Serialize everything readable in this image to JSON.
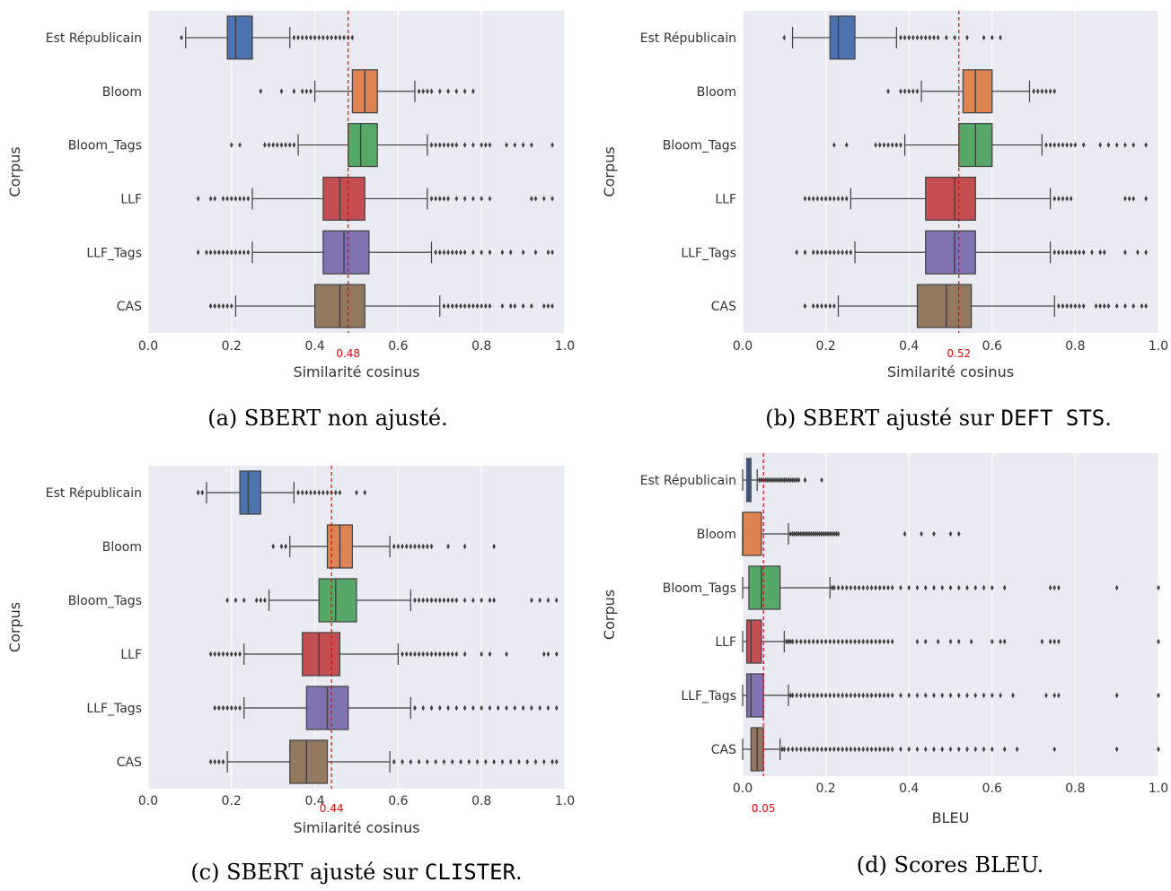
{
  "chart_data": [
    {
      "type": "boxplot",
      "orientation": "horizontal",
      "caption": {
        "prefix": "(a) SBERT non ajusté.",
        "mono": "",
        "suffix": ""
      },
      "xlabel": "Similarité cosinus",
      "ylabel": "Corpus",
      "xlim": [
        0,
        1
      ],
      "xticks": [
        "0.0",
        "0.2",
        "0.4",
        "0.6",
        "0.8",
        "1.0"
      ],
      "reference_line": {
        "value": 0.48,
        "label": "0.48"
      },
      "grid": true,
      "categories": [
        "Est Républicain",
        "Bloom",
        "Bloom_Tags",
        "LLF",
        "LLF_Tags",
        "CAS"
      ],
      "boxes": [
        {
          "corpus": "Est Républicain",
          "whisker_low": 0.09,
          "q1": 0.19,
          "median": 0.21,
          "q3": 0.25,
          "whisker_high": 0.34,
          "outliers": [
            0.08,
            0.35,
            0.36,
            0.37,
            0.38,
            0.39,
            0.4,
            0.41,
            0.42,
            0.43,
            0.44,
            0.45,
            0.46,
            0.47,
            0.48,
            0.49
          ]
        },
        {
          "corpus": "Bloom",
          "whisker_low": 0.4,
          "q1": 0.49,
          "median": 0.52,
          "q3": 0.55,
          "whisker_high": 0.64,
          "outliers": [
            0.27,
            0.32,
            0.35,
            0.37,
            0.38,
            0.39,
            0.65,
            0.66,
            0.67,
            0.68,
            0.7,
            0.72,
            0.74,
            0.76,
            0.78
          ]
        },
        {
          "corpus": "Bloom_Tags",
          "whisker_low": 0.36,
          "q1": 0.48,
          "median": 0.51,
          "q3": 0.55,
          "whisker_high": 0.67,
          "outliers": [
            0.2,
            0.22,
            0.28,
            0.29,
            0.3,
            0.31,
            0.32,
            0.33,
            0.34,
            0.35,
            0.68,
            0.69,
            0.7,
            0.71,
            0.72,
            0.73,
            0.74,
            0.76,
            0.78,
            0.8,
            0.81,
            0.82,
            0.86,
            0.88,
            0.9,
            0.92,
            0.97
          ]
        },
        {
          "corpus": "LLF",
          "whisker_low": 0.25,
          "q1": 0.42,
          "median": 0.46,
          "q3": 0.52,
          "whisker_high": 0.67,
          "outliers": [
            0.12,
            0.15,
            0.16,
            0.18,
            0.19,
            0.2,
            0.21,
            0.22,
            0.23,
            0.24,
            0.68,
            0.69,
            0.7,
            0.71,
            0.72,
            0.74,
            0.76,
            0.78,
            0.8,
            0.82,
            0.92,
            0.93,
            0.95,
            0.97
          ]
        },
        {
          "corpus": "LLF_Tags",
          "whisker_low": 0.25,
          "q1": 0.42,
          "median": 0.47,
          "q3": 0.53,
          "whisker_high": 0.68,
          "outliers": [
            0.12,
            0.14,
            0.15,
            0.16,
            0.17,
            0.18,
            0.19,
            0.2,
            0.21,
            0.22,
            0.23,
            0.24,
            0.69,
            0.7,
            0.71,
            0.72,
            0.73,
            0.74,
            0.75,
            0.76,
            0.78,
            0.8,
            0.82,
            0.85,
            0.87,
            0.9,
            0.93,
            0.96,
            0.97
          ]
        },
        {
          "corpus": "CAS",
          "whisker_low": 0.21,
          "q1": 0.4,
          "median": 0.46,
          "q3": 0.52,
          "whisker_high": 0.7,
          "outliers": [
            0.15,
            0.16,
            0.17,
            0.18,
            0.19,
            0.2,
            0.71,
            0.72,
            0.73,
            0.74,
            0.75,
            0.76,
            0.77,
            0.78,
            0.79,
            0.8,
            0.81,
            0.82,
            0.85,
            0.87,
            0.88,
            0.9,
            0.92,
            0.95,
            0.96,
            0.97
          ]
        }
      ]
    },
    {
      "type": "boxplot",
      "orientation": "horizontal",
      "caption": {
        "prefix": "(b) SBERT ajusté sur ",
        "mono": "DEFT STS",
        "suffix": "."
      },
      "xlabel": "Similarité cosinus",
      "ylabel": "Corpus",
      "xlim": [
        0,
        1
      ],
      "xticks": [
        "0.0",
        "0.2",
        "0.4",
        "0.6",
        "0.8",
        "1.0"
      ],
      "reference_line": {
        "value": 0.52,
        "label": "0.52"
      },
      "grid": true,
      "categories": [
        "Est Républicain",
        "Bloom",
        "Bloom_Tags",
        "LLF",
        "LLF_Tags",
        "CAS"
      ],
      "boxes": [
        {
          "corpus": "Est Républicain",
          "whisker_low": 0.12,
          "q1": 0.21,
          "median": 0.23,
          "q3": 0.27,
          "whisker_high": 0.37,
          "outliers": [
            0.1,
            0.38,
            0.39,
            0.4,
            0.41,
            0.42,
            0.43,
            0.44,
            0.45,
            0.46,
            0.47,
            0.49,
            0.51,
            0.54,
            0.58,
            0.6,
            0.62
          ]
        },
        {
          "corpus": "Bloom",
          "whisker_low": 0.43,
          "q1": 0.53,
          "median": 0.56,
          "q3": 0.6,
          "whisker_high": 0.69,
          "outliers": [
            0.35,
            0.38,
            0.39,
            0.4,
            0.41,
            0.42,
            0.7,
            0.71,
            0.72,
            0.73,
            0.74,
            0.75
          ]
        },
        {
          "corpus": "Bloom_Tags",
          "whisker_low": 0.39,
          "q1": 0.52,
          "median": 0.56,
          "q3": 0.6,
          "whisker_high": 0.72,
          "outliers": [
            0.22,
            0.25,
            0.32,
            0.33,
            0.34,
            0.35,
            0.36,
            0.37,
            0.38,
            0.73,
            0.74,
            0.75,
            0.76,
            0.77,
            0.78,
            0.79,
            0.8,
            0.82,
            0.86,
            0.88,
            0.9,
            0.92,
            0.94,
            0.97
          ]
        },
        {
          "corpus": "LLF",
          "whisker_low": 0.26,
          "q1": 0.44,
          "median": 0.51,
          "q3": 0.56,
          "whisker_high": 0.74,
          "outliers": [
            0.15,
            0.16,
            0.17,
            0.18,
            0.19,
            0.2,
            0.21,
            0.22,
            0.23,
            0.24,
            0.25,
            0.75,
            0.76,
            0.77,
            0.78,
            0.79,
            0.92,
            0.93,
            0.94,
            0.97
          ]
        },
        {
          "corpus": "LLF_Tags",
          "whisker_low": 0.27,
          "q1": 0.44,
          "median": 0.51,
          "q3": 0.56,
          "whisker_high": 0.74,
          "outliers": [
            0.13,
            0.15,
            0.17,
            0.18,
            0.19,
            0.2,
            0.21,
            0.22,
            0.23,
            0.24,
            0.25,
            0.26,
            0.75,
            0.76,
            0.77,
            0.78,
            0.79,
            0.8,
            0.81,
            0.82,
            0.84,
            0.86,
            0.87,
            0.92,
            0.95,
            0.97
          ]
        },
        {
          "corpus": "CAS",
          "whisker_low": 0.23,
          "q1": 0.42,
          "median": 0.49,
          "q3": 0.55,
          "whisker_high": 0.75,
          "outliers": [
            0.15,
            0.17,
            0.18,
            0.19,
            0.2,
            0.21,
            0.22,
            0.76,
            0.77,
            0.78,
            0.79,
            0.8,
            0.81,
            0.82,
            0.85,
            0.86,
            0.87,
            0.88,
            0.9,
            0.92,
            0.94,
            0.96,
            0.97
          ]
        }
      ]
    },
    {
      "type": "boxplot",
      "orientation": "horizontal",
      "caption": {
        "prefix": "(c) SBERT ajusté sur ",
        "mono": "CLISTER",
        "suffix": "."
      },
      "xlabel": "Similarité cosinus",
      "ylabel": "Corpus",
      "xlim": [
        0,
        1
      ],
      "xticks": [
        "0.0",
        "0.2",
        "0.4",
        "0.6",
        "0.8",
        "1.0"
      ],
      "reference_line": {
        "value": 0.44,
        "label": "0.44"
      },
      "grid": true,
      "categories": [
        "Est Républicain",
        "Bloom",
        "Bloom_Tags",
        "LLF",
        "LLF_Tags",
        "CAS"
      ],
      "boxes": [
        {
          "corpus": "Est Républicain",
          "whisker_low": 0.14,
          "q1": 0.22,
          "median": 0.24,
          "q3": 0.27,
          "whisker_high": 0.35,
          "outliers": [
            0.12,
            0.13,
            0.36,
            0.37,
            0.38,
            0.39,
            0.4,
            0.41,
            0.42,
            0.43,
            0.44,
            0.45,
            0.46,
            0.5,
            0.52
          ]
        },
        {
          "corpus": "Bloom",
          "whisker_low": 0.34,
          "q1": 0.43,
          "median": 0.46,
          "q3": 0.49,
          "whisker_high": 0.58,
          "outliers": [
            0.3,
            0.32,
            0.33,
            0.59,
            0.6,
            0.61,
            0.62,
            0.63,
            0.64,
            0.65,
            0.66,
            0.67,
            0.68,
            0.72,
            0.76,
            0.83
          ]
        },
        {
          "corpus": "Bloom_Tags",
          "whisker_low": 0.29,
          "q1": 0.41,
          "median": 0.45,
          "q3": 0.5,
          "whisker_high": 0.63,
          "outliers": [
            0.19,
            0.21,
            0.23,
            0.26,
            0.27,
            0.28,
            0.64,
            0.65,
            0.66,
            0.67,
            0.68,
            0.69,
            0.7,
            0.71,
            0.72,
            0.73,
            0.74,
            0.76,
            0.78,
            0.8,
            0.82,
            0.83,
            0.92,
            0.94,
            0.96,
            0.98
          ]
        },
        {
          "corpus": "LLF",
          "whisker_low": 0.23,
          "q1": 0.37,
          "median": 0.41,
          "q3": 0.46,
          "whisker_high": 0.6,
          "outliers": [
            0.15,
            0.16,
            0.17,
            0.18,
            0.19,
            0.2,
            0.21,
            0.22,
            0.61,
            0.62,
            0.63,
            0.64,
            0.65,
            0.66,
            0.67,
            0.68,
            0.69,
            0.7,
            0.71,
            0.72,
            0.73,
            0.74,
            0.76,
            0.8,
            0.82,
            0.86,
            0.95,
            0.96,
            0.98
          ]
        },
        {
          "corpus": "LLF_Tags",
          "whisker_low": 0.23,
          "q1": 0.38,
          "median": 0.43,
          "q3": 0.48,
          "whisker_high": 0.63,
          "outliers": [
            0.16,
            0.17,
            0.18,
            0.19,
            0.2,
            0.21,
            0.22,
            0.64,
            0.66,
            0.68,
            0.7,
            0.72,
            0.74,
            0.76,
            0.78,
            0.8,
            0.82,
            0.84,
            0.86,
            0.88,
            0.9,
            0.92,
            0.94,
            0.96,
            0.98
          ]
        },
        {
          "corpus": "CAS",
          "whisker_low": 0.19,
          "q1": 0.34,
          "median": 0.38,
          "q3": 0.43,
          "whisker_high": 0.58,
          "outliers": [
            0.15,
            0.16,
            0.17,
            0.18,
            0.59,
            0.61,
            0.63,
            0.65,
            0.67,
            0.69,
            0.71,
            0.73,
            0.75,
            0.77,
            0.79,
            0.81,
            0.83,
            0.85,
            0.87,
            0.89,
            0.91,
            0.93,
            0.95,
            0.97,
            0.98
          ]
        }
      ]
    },
    {
      "type": "boxplot",
      "orientation": "horizontal",
      "caption": {
        "prefix": "(d) Scores BLEU.",
        "mono": "",
        "suffix": ""
      },
      "xlabel": "BLEU",
      "ylabel": "Corpus",
      "xlim": [
        0,
        1
      ],
      "xticks": [
        "0.0",
        "0.2",
        "0.4",
        "0.6",
        "0.8",
        "1.0"
      ],
      "reference_line": {
        "value": 0.05,
        "label": "0.05"
      },
      "grid": true,
      "categories": [
        "Est Républicain",
        "Bloom",
        "Bloom_Tags",
        "LLF",
        "LLF_Tags",
        "CAS"
      ],
      "boxes": [
        {
          "corpus": "Est Républicain",
          "whisker_low": 0.0,
          "q1": 0.01,
          "median": 0.015,
          "q3": 0.02,
          "whisker_high": 0.035,
          "outliers": [
            0.04,
            0.045,
            0.05,
            0.055,
            0.06,
            0.065,
            0.07,
            0.075,
            0.08,
            0.085,
            0.09,
            0.095,
            0.1,
            0.105,
            0.11,
            0.115,
            0.12,
            0.125,
            0.13,
            0.135,
            0.15,
            0.19
          ]
        },
        {
          "corpus": "Bloom",
          "whisker_low": 0.0,
          "q1": 0.0,
          "median": 0.0,
          "q3": 0.045,
          "whisker_high": 0.11,
          "outliers": [
            0.115,
            0.12,
            0.125,
            0.13,
            0.135,
            0.14,
            0.145,
            0.15,
            0.155,
            0.16,
            0.165,
            0.17,
            0.175,
            0.18,
            0.185,
            0.19,
            0.195,
            0.2,
            0.205,
            0.21,
            0.215,
            0.22,
            0.225,
            0.23,
            0.39,
            0.43,
            0.46,
            0.5,
            0.52
          ]
        },
        {
          "corpus": "Bloom_Tags",
          "whisker_low": 0.0,
          "q1": 0.015,
          "median": 0.045,
          "q3": 0.09,
          "whisker_high": 0.21,
          "outliers": [
            0.215,
            0.22,
            0.23,
            0.24,
            0.25,
            0.26,
            0.27,
            0.28,
            0.29,
            0.3,
            0.31,
            0.32,
            0.33,
            0.34,
            0.35,
            0.36,
            0.38,
            0.4,
            0.42,
            0.44,
            0.46,
            0.48,
            0.5,
            0.52,
            0.54,
            0.56,
            0.58,
            0.6,
            0.63,
            0.74,
            0.75,
            0.76,
            0.9,
            1.0
          ]
        },
        {
          "corpus": "LLF",
          "whisker_low": 0.0,
          "q1": 0.01,
          "median": 0.02,
          "q3": 0.045,
          "whisker_high": 0.1,
          "outliers": [
            0.105,
            0.11,
            0.115,
            0.12,
            0.13,
            0.14,
            0.15,
            0.16,
            0.17,
            0.18,
            0.19,
            0.2,
            0.21,
            0.22,
            0.23,
            0.24,
            0.25,
            0.26,
            0.27,
            0.28,
            0.29,
            0.3,
            0.31,
            0.32,
            0.33,
            0.34,
            0.35,
            0.36,
            0.42,
            0.44,
            0.47,
            0.5,
            0.52,
            0.55,
            0.6,
            0.62,
            0.63,
            0.72,
            0.74,
            0.75,
            0.76,
            1.0
          ]
        },
        {
          "corpus": "LLF_Tags",
          "whisker_low": 0.0,
          "q1": 0.01,
          "median": 0.02,
          "q3": 0.05,
          "whisker_high": 0.11,
          "outliers": [
            0.115,
            0.12,
            0.13,
            0.14,
            0.15,
            0.16,
            0.17,
            0.18,
            0.19,
            0.2,
            0.21,
            0.22,
            0.23,
            0.24,
            0.25,
            0.26,
            0.27,
            0.28,
            0.29,
            0.3,
            0.31,
            0.32,
            0.33,
            0.34,
            0.35,
            0.36,
            0.38,
            0.4,
            0.42,
            0.44,
            0.46,
            0.48,
            0.5,
            0.52,
            0.54,
            0.56,
            0.58,
            0.6,
            0.62,
            0.65,
            0.73,
            0.75,
            0.76,
            0.9,
            1.0
          ]
        },
        {
          "corpus": "CAS",
          "whisker_low": 0.0,
          "q1": 0.02,
          "median": 0.035,
          "q3": 0.05,
          "whisker_high": 0.09,
          "outliers": [
            0.095,
            0.1,
            0.11,
            0.12,
            0.13,
            0.14,
            0.15,
            0.16,
            0.17,
            0.18,
            0.19,
            0.2,
            0.21,
            0.22,
            0.23,
            0.24,
            0.25,
            0.26,
            0.27,
            0.28,
            0.29,
            0.3,
            0.31,
            0.32,
            0.33,
            0.34,
            0.35,
            0.36,
            0.38,
            0.4,
            0.42,
            0.44,
            0.46,
            0.48,
            0.5,
            0.52,
            0.54,
            0.56,
            0.58,
            0.6,
            0.63,
            0.66,
            0.75,
            0.9,
            1.0
          ]
        }
      ]
    }
  ],
  "colors": {
    "Est Républicain": "#4c72b0",
    "Bloom": "#dd8452",
    "Bloom_Tags": "#55a868",
    "LLF": "#c44e52",
    "LLF_Tags": "#8172b3",
    "CAS": "#937860",
    "plot_background": "#eaeaf2",
    "grid": "#ffffff",
    "reference_line": "#e8000b",
    "box_edge": "#3f3f3f",
    "outlier": "#3f3f3f"
  }
}
